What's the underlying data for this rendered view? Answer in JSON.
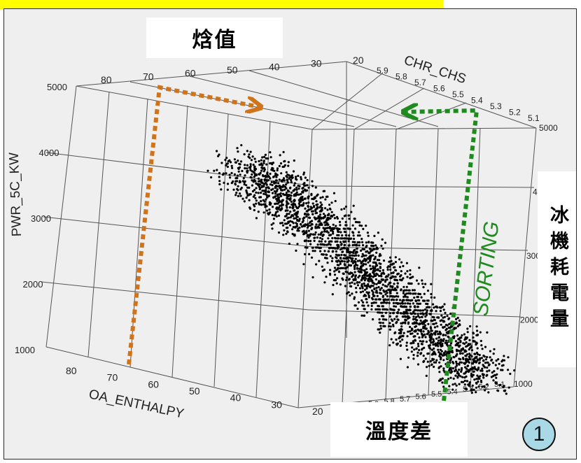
{
  "labels": {
    "enthalpy_cn": "焓值",
    "chiller_power_cn": "冰機耗電量",
    "temp_diff_cn": "溫度差",
    "sorting": "SORTING",
    "badge_number": "1"
  },
  "colors": {
    "highlight_bar": "#ffff00",
    "enthalpy_arrow": "#d0741c",
    "sorting_arrow": "#1f8a1f",
    "points": "#000000",
    "badge": "#a9d8e6",
    "panel": "#efefef"
  },
  "chart_data": {
    "type": "scatter",
    "projection": "3d",
    "grid": true,
    "axes": {
      "x_enthalpy": {
        "label": "OA_ENTHALPY",
        "ticks": [
          80,
          70,
          60,
          50,
          40,
          30,
          20
        ],
        "range": [
          20,
          80
        ]
      },
      "y_temp_diff": {
        "label": "CHR_CHS",
        "ticks": [
          5.9,
          5.8,
          5.7,
          5.6,
          5.5,
          5.4,
          5.3,
          5.2,
          5.1
        ],
        "range": [
          5.1,
          5.9
        ]
      },
      "z_power": {
        "label": "PWR_5C_KW",
        "ticks": [
          1000,
          2000,
          3000,
          4000,
          5000
        ],
        "range": [
          1000,
          5000
        ]
      }
    },
    "series": [
      {
        "points": [
          {
            "enthalpy": 62,
            "temp_diff": 5.5,
            "power": 4300
          },
          {
            "enthalpy": 55,
            "temp_diff": 5.45,
            "power": 3900
          },
          {
            "enthalpy": 50,
            "temp_diff": 5.4,
            "power": 3500
          },
          {
            "enthalpy": 45,
            "temp_diff": 5.35,
            "power": 3000
          },
          {
            "enthalpy": 40,
            "temp_diff": 5.3,
            "power": 2600
          },
          {
            "enthalpy": 35,
            "temp_diff": 5.25,
            "power": 2100
          },
          {
            "enthalpy": 30,
            "temp_diff": 5.2,
            "power": 1700
          },
          {
            "enthalpy": 25,
            "temp_diff": 5.15,
            "power": 1300
          }
        ]
      }
    ]
  }
}
